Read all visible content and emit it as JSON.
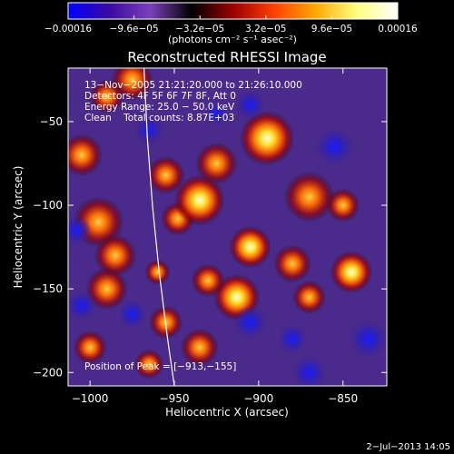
{
  "chart_data": {
    "type": "heatmap",
    "title": "Reconstructed RHESSI Image",
    "xlabel": "Heliocentric X (arcsec)",
    "ylabel": "Heliocentric Y (arcsec)",
    "xlim": [
      -1013,
      -824
    ],
    "ylim": [
      -208,
      -18
    ],
    "x_ticks": [
      {
        "value": -1000,
        "label": "−1000"
      },
      {
        "value": -950,
        "label": "−950"
      },
      {
        "value": -900,
        "label": "−900"
      },
      {
        "value": -850,
        "label": "−850"
      }
    ],
    "y_ticks": [
      {
        "value": -50,
        "label": "−50"
      },
      {
        "value": -100,
        "label": "−100"
      },
      {
        "value": -150,
        "label": "−150"
      },
      {
        "value": -200,
        "label": "−200"
      }
    ],
    "colorbar": {
      "min": -0.00016,
      "max": 0.00016,
      "tick_labels": [
        "−0.00016",
        "−9.6e−05",
        "−3.2e−05",
        "3.2e−05",
        "9.6e−05",
        "0.00016"
      ],
      "tick_values": [
        -0.00016,
        -9.6e-05,
        -3.2e-05,
        3.2e-05,
        9.6e-05,
        0.00016
      ],
      "unit_text": "(photons cm⁻² s⁻¹ asec⁻²)",
      "colors": [
        "#0000ff",
        "#3a0aa0",
        "#7a40b8",
        "#000000",
        "#9a0000",
        "#ff4000",
        "#ffa800",
        "#ffff80",
        "#ffffff"
      ]
    },
    "annotations": [
      "13−Nov−2005 21:21:20.000 to 21:26:10.000",
      "Detectors: 4F 5F 6F 7F 8F, Att 0",
      "Energy Range: 25.0 − 50.0 keV",
      "Clean    Total counts: 8.87E+03"
    ],
    "peak_label": "Position of Peak = [−913,−155]",
    "peak": {
      "x": -913,
      "y": -155
    },
    "limb_curve": [
      [
        -968,
        -18
      ],
      [
        -966,
        -60
      ],
      [
        -963,
        -100
      ],
      [
        -959,
        -140
      ],
      [
        -954,
        -180
      ],
      [
        -950,
        -208
      ]
    ],
    "blobs": [
      {
        "x": -975,
        "y": -25,
        "r": 10,
        "v": 0.9
      },
      {
        "x": -1005,
        "y": -70,
        "r": 10,
        "v": 0.75
      },
      {
        "x": -995,
        "y": -110,
        "r": 12,
        "v": 0.85
      },
      {
        "x": -985,
        "y": -130,
        "r": 10,
        "v": 0.9
      },
      {
        "x": -990,
        "y": -150,
        "r": 10,
        "v": 0.7
      },
      {
        "x": -955,
        "y": -82,
        "r": 9,
        "v": 0.8
      },
      {
        "x": -948,
        "y": -108,
        "r": 8,
        "v": 0.9
      },
      {
        "x": -935,
        "y": -97,
        "r": 12,
        "v": 1.0
      },
      {
        "x": -925,
        "y": -75,
        "r": 10,
        "v": 0.85
      },
      {
        "x": -895,
        "y": -60,
        "r": 13,
        "v": 1.0
      },
      {
        "x": -870,
        "y": -95,
        "r": 12,
        "v": 0.9
      },
      {
        "x": -905,
        "y": -125,
        "r": 10,
        "v": 0.95
      },
      {
        "x": -880,
        "y": -135,
        "r": 9,
        "v": 0.75
      },
      {
        "x": -913,
        "y": -155,
        "r": 11,
        "v": 1.0
      },
      {
        "x": -930,
        "y": -145,
        "r": 8,
        "v": 0.85
      },
      {
        "x": -845,
        "y": -140,
        "r": 10,
        "v": 1.0
      },
      {
        "x": -870,
        "y": -155,
        "r": 8,
        "v": 0.8
      },
      {
        "x": -955,
        "y": -170,
        "r": 8,
        "v": 0.9
      },
      {
        "x": -935,
        "y": -185,
        "r": 9,
        "v": 0.85
      },
      {
        "x": -965,
        "y": -195,
        "r": 7,
        "v": 0.8
      },
      {
        "x": -1000,
        "y": -185,
        "r": 8,
        "v": 0.65
      },
      {
        "x": -850,
        "y": -100,
        "r": 8,
        "v": 0.85
      },
      {
        "x": -960,
        "y": -140,
        "r": 6,
        "v": 0.6
      },
      {
        "x": -990,
        "y": -35,
        "r": 8,
        "v": 0.6
      },
      {
        "x": -925,
        "y": -45,
        "r": 6,
        "v": -0.55
      },
      {
        "x": -855,
        "y": -65,
        "r": 9,
        "v": -0.9
      },
      {
        "x": -835,
        "y": -180,
        "r": 9,
        "v": -0.7
      },
      {
        "x": -870,
        "y": -200,
        "r": 8,
        "v": -0.65
      },
      {
        "x": -905,
        "y": -170,
        "r": 8,
        "v": -0.5
      },
      {
        "x": -1005,
        "y": -160,
        "r": 7,
        "v": -0.6
      },
      {
        "x": -975,
        "y": -165,
        "r": 7,
        "v": -0.7
      },
      {
        "x": -1008,
        "y": -115,
        "r": 7,
        "v": -0.5
      },
      {
        "x": -965,
        "y": -55,
        "r": 7,
        "v": -0.55
      },
      {
        "x": -880,
        "y": -180,
        "r": 7,
        "v": -0.5
      },
      {
        "x": -905,
        "y": -40,
        "r": 7,
        "v": -0.55
      }
    ]
  },
  "footer": {
    "timestamp": "2−Jul−2013 14:05"
  }
}
